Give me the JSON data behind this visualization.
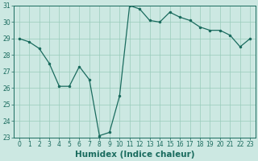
{
  "x": [
    0,
    1,
    2,
    3,
    4,
    5,
    6,
    7,
    8,
    9,
    10,
    11,
    12,
    13,
    14,
    15,
    16,
    17,
    18,
    19,
    20,
    21,
    22,
    23
  ],
  "y": [
    29.0,
    28.8,
    28.4,
    27.5,
    26.1,
    26.1,
    27.3,
    26.5,
    23.1,
    23.3,
    25.5,
    31.0,
    30.8,
    30.1,
    30.0,
    30.6,
    30.3,
    30.1,
    29.7,
    29.5,
    29.5,
    29.2,
    28.5,
    29.0
  ],
  "line_color": "#1a6b5e",
  "marker_color": "#1a6b5e",
  "bg_color": "#cce8e2",
  "grid_color": "#99ccbb",
  "xlabel": "Humidex (Indice chaleur)",
  "ylim": [
    23,
    31
  ],
  "xlim_min": -0.5,
  "xlim_max": 23.5,
  "yticks": [
    23,
    24,
    25,
    26,
    27,
    28,
    29,
    30,
    31
  ],
  "xticks": [
    0,
    1,
    2,
    3,
    4,
    5,
    6,
    7,
    8,
    9,
    10,
    11,
    12,
    13,
    14,
    15,
    16,
    17,
    18,
    19,
    20,
    21,
    22,
    23
  ],
  "tick_label_fontsize": 5.5,
  "xlabel_fontsize": 7.5,
  "linewidth": 0.9,
  "markersize": 3.0
}
